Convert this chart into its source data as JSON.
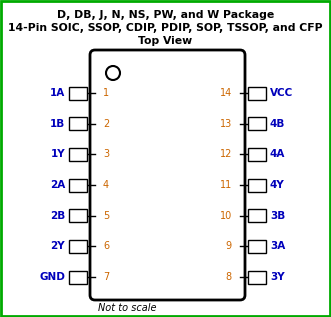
{
  "title_line1": "D, DB, J, N, NS, PW, and W Package",
  "title_line2": "14-Pin SOIC, SSOP, CDIP, PDIP, SOP, TSSOP, and CFP",
  "title_line3": "Top View",
  "note": "Not to scale",
  "left_pins": [
    {
      "num": "1",
      "label": "1A"
    },
    {
      "num": "2",
      "label": "1B"
    },
    {
      "num": "3",
      "label": "1Y"
    },
    {
      "num": "4",
      "label": "2A"
    },
    {
      "num": "5",
      "label": "2B"
    },
    {
      "num": "6",
      "label": "2Y"
    },
    {
      "num": "7",
      "label": "GND"
    }
  ],
  "right_pins": [
    {
      "num": "14",
      "label": "VCC"
    },
    {
      "num": "13",
      "label": "4B"
    },
    {
      "num": "12",
      "label": "4A"
    },
    {
      "num": "11",
      "label": "4Y"
    },
    {
      "num": "10",
      "label": "3B"
    },
    {
      "num": "9",
      "label": "3A"
    },
    {
      "num": "8",
      "label": "3Y"
    }
  ],
  "bg_color": "#ffffff",
  "border_color": "#00aa00",
  "ic_body_color": "#ffffff",
  "ic_border_color": "#000000",
  "pin_box_color": "#ffffff",
  "pin_box_border": "#000000",
  "title_color": "#000000",
  "pin_num_color": "#cc6600",
  "pin_label_color": "#0000bb",
  "note_color": "#000000",
  "figsize": [
    3.31,
    3.17
  ],
  "dpi": 100
}
